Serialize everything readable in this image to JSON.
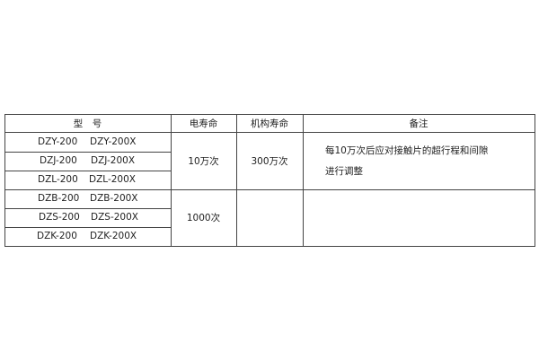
{
  "headers": {
    "model": "型　号",
    "electrical_life": "电寿命",
    "mechanical_life": "机构寿命",
    "remarks": "备注"
  },
  "rows": [
    {
      "model_a": "DZY-200",
      "model_b": "DZY-200X"
    },
    {
      "model_a": "DZJ-200",
      "model_b": "DZJ-200X"
    },
    {
      "model_a": "DZL-200",
      "model_b": "DZL-200X"
    },
    {
      "model_a": "DZB-200",
      "model_b": "DZB-200X"
    },
    {
      "model_a": "DZS-200",
      "model_b": "DZS-200X"
    },
    {
      "model_a": "DZK-200",
      "model_b": "DZK-200X"
    }
  ],
  "groups": [
    {
      "electrical_life": "10万次",
      "mechanical_life": "300万次",
      "remarks_line1": "每10万次后应对接触片的超行程和间隙",
      "remarks_line2": "进行调整"
    },
    {
      "electrical_life": "1000次",
      "mechanical_life": "",
      "remarks_line1": "",
      "remarks_line2": ""
    }
  ]
}
